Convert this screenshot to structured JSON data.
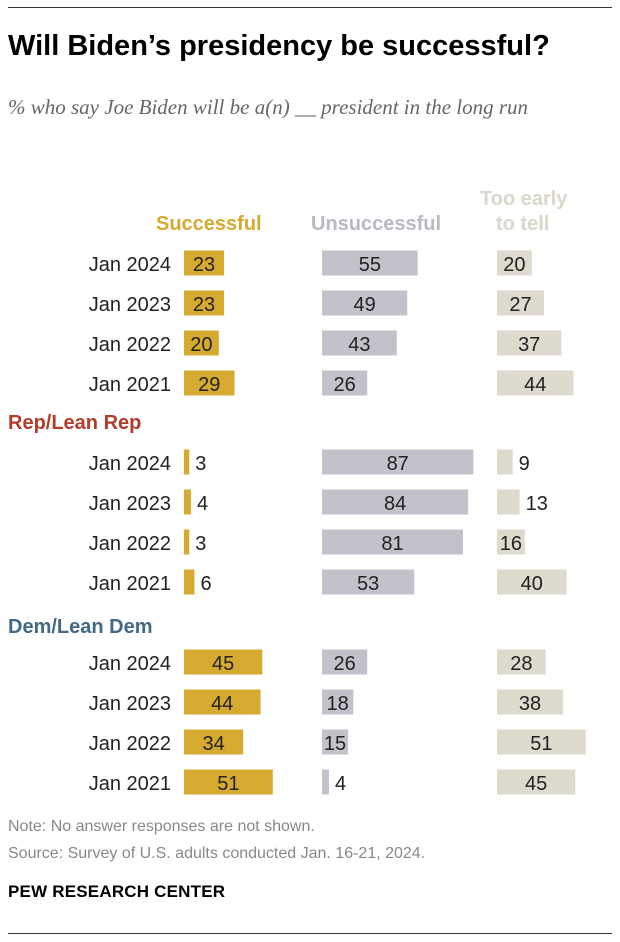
{
  "title": "Will Biden’s presidency be successful?",
  "subtitle": "% who say Joe Biden will be a(n) __ president in the long run",
  "columns": {
    "successful": "Successful",
    "unsuccessful": "Unsuccessful",
    "too_early_line1": "Too early",
    "too_early_line2": "to tell"
  },
  "colors": {
    "successful": "#d6a92f",
    "unsuccessful": "#c5c1cb",
    "too_early": "#dedace",
    "rep_label": "#b13d2b",
    "dem_label": "#436a85"
  },
  "note": "Note: No answer responses are not shown.",
  "source": "Source: Survey of U.S. adults conducted Jan. 16-21, 2024.",
  "brand": "PEW RESEARCH CENTER",
  "chart_data": {
    "type": "bar",
    "series_names": [
      "Successful",
      "Unsuccessful",
      "Too early to tell"
    ],
    "groups": [
      {
        "name": "",
        "rows": [
          {
            "label": "Jan 2024",
            "values": [
              23,
              55,
              20
            ]
          },
          {
            "label": "Jan 2023",
            "values": [
              23,
              49,
              27
            ]
          },
          {
            "label": "Jan 2022",
            "values": [
              20,
              43,
              37
            ]
          },
          {
            "label": "Jan 2021",
            "values": [
              29,
              26,
              44
            ]
          }
        ]
      },
      {
        "name": "Rep/Lean Rep",
        "rows": [
          {
            "label": "Jan 2024",
            "values": [
              3,
              87,
              9
            ]
          },
          {
            "label": "Jan 2023",
            "values": [
              4,
              84,
              13
            ]
          },
          {
            "label": "Jan 2022",
            "values": [
              3,
              81,
              16
            ]
          },
          {
            "label": "Jan 2021",
            "values": [
              6,
              53,
              40
            ]
          }
        ]
      },
      {
        "name": "Dem/Lean Dem",
        "rows": [
          {
            "label": "Jan 2024",
            "values": [
              45,
              26,
              28
            ]
          },
          {
            "label": "Jan 2023",
            "values": [
              44,
              18,
              38
            ]
          },
          {
            "label": "Jan 2022",
            "values": [
              34,
              15,
              51
            ]
          },
          {
            "label": "Jan 2021",
            "values": [
              51,
              4,
              45
            ]
          }
        ]
      }
    ]
  }
}
